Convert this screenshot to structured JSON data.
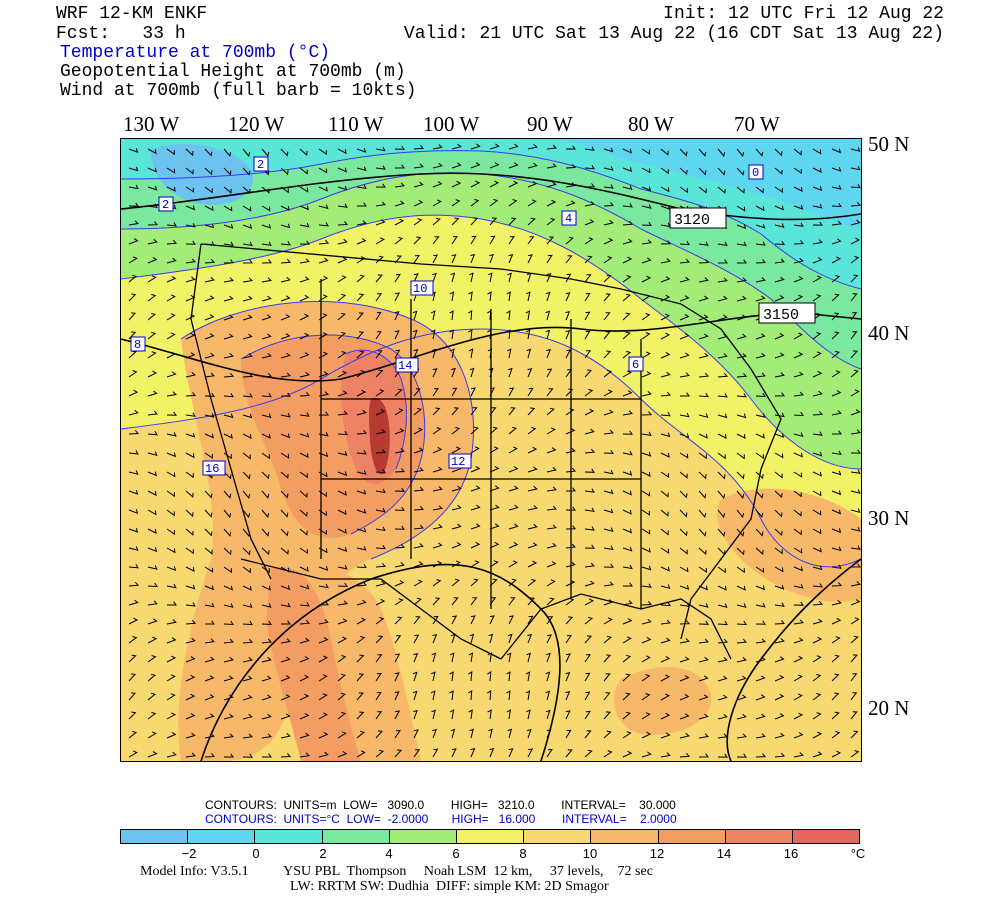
{
  "header": {
    "model": "WRF 12-KM ENKF",
    "fcst": "Fcst:   33 h",
    "init": "Init: 12 UTC Fri 12 Aug 22",
    "valid": "Valid: 21 UTC Sat 13 Aug 22 (16 CDT Sat 13 Aug 22)",
    "field1": "Temperature at 700mb (°C)",
    "field2": "Geopotential Height at 700mb (m)",
    "field3": "Wind at 700mb (full barb = 10kts)"
  },
  "lon_labels": [
    "130 W",
    "120 W",
    "110 W",
    "100 W",
    "90 W",
    "80 W",
    "70 W"
  ],
  "lat_labels": [
    "50 N",
    "40 N",
    "30 N",
    "20 N"
  ],
  "height_labels": [
    "3120",
    "3150"
  ],
  "temp_labels": [
    "2",
    "0",
    "2",
    "4",
    "6",
    "8",
    "10",
    "12",
    "14",
    "16"
  ],
  "contour_info": {
    "height": "CONTOURS:  UNITS=m  LOW=   3090.0        HIGH=   3210.0        INTERVAL=    30.000",
    "temp": "CONTOURS:  UNITS=°C  LOW=  -2.0000       HIGH=   16.000        INTERVAL=    2.0000"
  },
  "colorbar": {
    "colors": [
      "#6cc3ef",
      "#5fd6f0",
      "#59e6d9",
      "#7be8a0",
      "#a3ec78",
      "#f2f267",
      "#f8d870",
      "#f7b869",
      "#f39d63",
      "#ee8265",
      "#e7675f",
      "#b83b33"
    ],
    "ticks": [
      "−2",
      "0",
      "2",
      "4",
      "6",
      "8",
      "10",
      "12",
      "14",
      "16"
    ],
    "unit": "°C"
  },
  "footer": {
    "line1": "Model Info: V3.5.1          YSU PBL  Thompson     Noah LSM  12 km,     37 levels,    72 sec",
    "line2": "LW: RRTM SW: Dudhia  DIFF: simple KM: 2D Smagor"
  }
}
